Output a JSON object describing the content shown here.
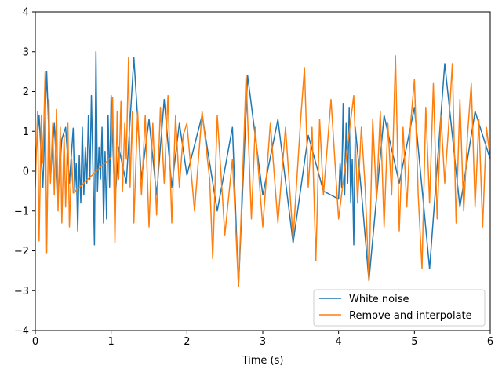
{
  "chart_data": {
    "type": "line",
    "title": "",
    "xlabel": "Time (s)",
    "ylabel": "",
    "xlim": [
      0,
      6
    ],
    "ylim": [
      -4,
      4
    ],
    "grid": false,
    "legend_position": "lower-right",
    "x_ticks": [
      "0",
      "1",
      "2",
      "3",
      "4",
      "5",
      "6"
    ],
    "y_ticks": [
      "−4",
      "−3",
      "−2",
      "−1",
      "0",
      "1",
      "2",
      "3",
      "4"
    ],
    "series": [
      {
        "name": "White noise",
        "color": "#1f77b4",
        "x": [
          0.0,
          0.05,
          0.1,
          0.15,
          0.2,
          0.25,
          0.3,
          0.35,
          0.4,
          0.45,
          0.5,
          0.52,
          0.54,
          0.56,
          0.58,
          0.6,
          0.62,
          0.64,
          0.66,
          0.68,
          0.7,
          0.72,
          0.74,
          0.76,
          0.78,
          0.8,
          0.82,
          0.84,
          0.86,
          0.88,
          0.9,
          0.92,
          0.94,
          0.96,
          0.98,
          1.0,
          1.05,
          1.1,
          1.2,
          1.3,
          1.4,
          1.5,
          1.6,
          1.7,
          1.8,
          1.9,
          2.0,
          2.2,
          2.4,
          2.6,
          2.68,
          2.8,
          3.0,
          3.2,
          3.4,
          3.6,
          3.8,
          4.0,
          4.02,
          4.04,
          4.06,
          4.08,
          4.1,
          4.12,
          4.14,
          4.16,
          4.18,
          4.2,
          4.22,
          4.3,
          4.4,
          4.6,
          4.8,
          5.0,
          5.2,
          5.4,
          5.6,
          5.8,
          6.0
        ],
        "y": [
          0.2,
          1.4,
          -0.4,
          2.5,
          -0.2,
          1.2,
          -0.6,
          0.8,
          1.1,
          -0.3,
          1.08,
          -0.5,
          0.2,
          -1.5,
          0.4,
          -0.8,
          1.1,
          -0.6,
          0.6,
          -0.3,
          1.4,
          -0.2,
          1.9,
          0.1,
          -1.85,
          3.0,
          -0.5,
          0.6,
          -0.2,
          1.1,
          -1.3,
          0.5,
          -1.2,
          1.4,
          -0.4,
          1.9,
          -0.8,
          0.6,
          -0.3,
          2.85,
          -0.2,
          1.3,
          -0.6,
          1.8,
          -0.4,
          1.2,
          -0.1,
          1.4,
          -1.0,
          1.1,
          -2.9,
          2.4,
          -0.6,
          1.3,
          -1.8,
          0.9,
          -0.5,
          -0.7,
          0.2,
          -0.4,
          1.7,
          -0.6,
          1.2,
          -0.3,
          1.6,
          -0.8,
          0.3,
          -1.85,
          1.1,
          -0.5,
          -2.75,
          1.4,
          -0.3,
          1.6,
          -2.45,
          2.7,
          -0.9,
          1.5,
          0.3
        ]
      },
      {
        "name": "Remove and interpolate",
        "color": "#ff7f0e",
        "x": [
          0.0,
          0.03,
          0.05,
          0.08,
          0.1,
          0.13,
          0.15,
          0.18,
          0.2,
          0.23,
          0.25,
          0.28,
          0.3,
          0.33,
          0.35,
          0.38,
          0.4,
          0.43,
          0.45,
          0.48,
          0.5,
          1.0,
          1.02,
          1.05,
          1.08,
          1.1,
          1.13,
          1.15,
          1.18,
          1.2,
          1.23,
          1.25,
          1.28,
          1.3,
          1.35,
          1.4,
          1.45,
          1.5,
          1.55,
          1.6,
          1.65,
          1.7,
          1.75,
          1.8,
          1.85,
          1.9,
          1.95,
          2.0,
          2.1,
          2.2,
          2.3,
          2.34,
          2.4,
          2.5,
          2.6,
          2.68,
          2.75,
          2.78,
          2.85,
          2.9,
          3.0,
          3.1,
          3.2,
          3.3,
          3.4,
          3.5,
          3.55,
          3.6,
          3.65,
          3.7,
          3.75,
          3.8,
          3.9,
          4.0,
          4.2,
          4.25,
          4.3,
          4.35,
          4.4,
          4.45,
          4.5,
          4.55,
          4.6,
          4.65,
          4.7,
          4.75,
          4.8,
          4.85,
          4.9,
          4.95,
          5.0,
          5.05,
          5.1,
          5.15,
          5.2,
          5.25,
          5.3,
          5.35,
          5.4,
          5.45,
          5.5,
          5.55,
          5.6,
          5.65,
          5.7,
          5.75,
          5.8,
          5.85,
          5.9,
          5.95,
          6.0
        ],
        "y": [
          -0.4,
          1.5,
          -1.75,
          1.4,
          0.2,
          2.5,
          -2.05,
          1.8,
          -0.3,
          1.2,
          -0.6,
          1.55,
          -1.0,
          1.1,
          -1.3,
          0.9,
          -0.9,
          1.2,
          -1.4,
          0.3,
          -0.55,
          0.35,
          1.85,
          -1.8,
          1.5,
          -0.2,
          1.75,
          -0.5,
          1.2,
          0.3,
          2.85,
          -0.4,
          1.5,
          -1.3,
          1.5,
          -0.6,
          1.4,
          -1.4,
          1.2,
          -1.1,
          1.6,
          -0.3,
          1.9,
          -1.3,
          1.4,
          -0.4,
          0.9,
          1.2,
          -1.0,
          1.5,
          -0.2,
          -2.2,
          1.4,
          -1.6,
          0.3,
          -2.9,
          0.7,
          2.4,
          -1.2,
          1.1,
          -1.4,
          1.2,
          -1.3,
          1.1,
          -1.7,
          1.3,
          2.6,
          -0.4,
          1.1,
          -2.25,
          1.3,
          -0.6,
          1.8,
          -1.2,
          1.9,
          -0.8,
          1.1,
          -0.4,
          -2.75,
          1.3,
          -0.7,
          1.5,
          -1.4,
          1.2,
          -0.6,
          2.9,
          -1.5,
          1.1,
          -0.9,
          1.2,
          2.3,
          -0.6,
          -2.45,
          1.6,
          -0.8,
          2.2,
          -1.2,
          1.4,
          -0.3,
          1.1,
          2.7,
          -1.3,
          1.8,
          -1.0,
          0.9,
          2.2,
          -0.9,
          1.3,
          -1.4,
          1.1,
          0.3
        ]
      }
    ]
  }
}
